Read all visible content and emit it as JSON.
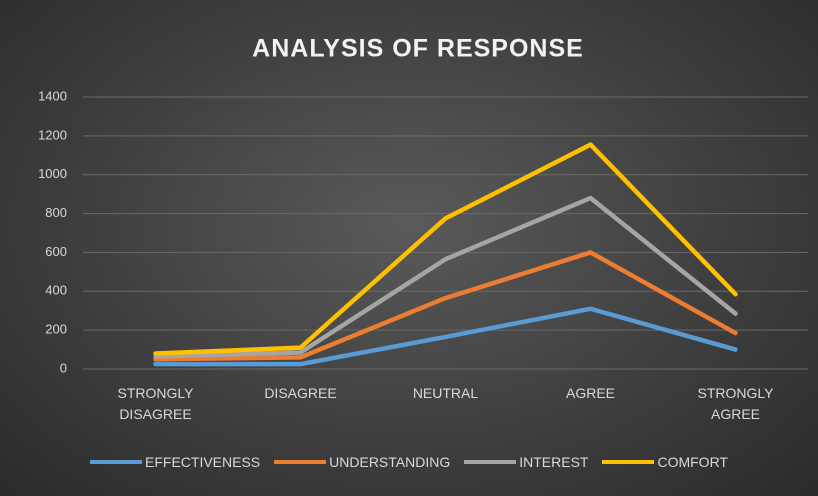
{
  "chart_data": {
    "type": "line",
    "stacked": true,
    "title": "ANALYSIS OF RESPONSE",
    "categories": [
      "STRONGLY DISAGREE",
      "DISAGREE",
      "NEUTRAL",
      "AGREE",
      "STRONGLY AGREE"
    ],
    "series": [
      {
        "name": "EFFECTIVENESS",
        "color": "#5b9bd5",
        "values": [
          25,
          25,
          165,
          310,
          100
        ]
      },
      {
        "name": "UNDERSTANDING",
        "color": "#ed7d31",
        "values": [
          25,
          35,
          200,
          290,
          85
        ]
      },
      {
        "name": "INTEREST",
        "color": "#a5a5a5",
        "values": [
          15,
          25,
          200,
          280,
          100
        ]
      },
      {
        "name": "COMFORT",
        "color": "#ffc000",
        "values": [
          15,
          25,
          210,
          275,
          100
        ]
      }
    ],
    "ylim": [
      0,
      1400
    ],
    "yticks": [
      0,
      200,
      400,
      600,
      800,
      1000,
      1200,
      1400
    ],
    "grid": true
  }
}
